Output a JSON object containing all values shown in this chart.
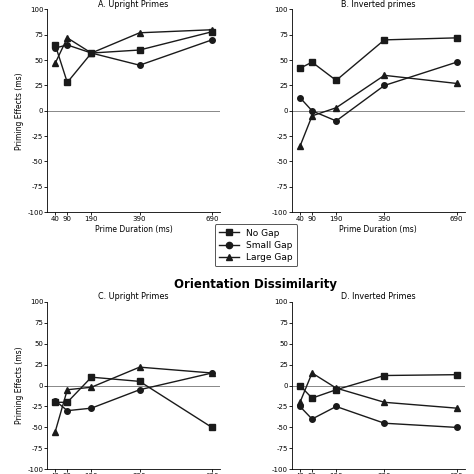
{
  "x_vals": [
    40,
    90,
    190,
    390,
    690
  ],
  "x_ticks": [
    40,
    90,
    190,
    390,
    690
  ],
  "panel_A": {
    "title": "A. Upright Primes",
    "no_gap": [
      65,
      28,
      57,
      60,
      78
    ],
    "small_gap": [
      62,
      65,
      57,
      45,
      70
    ],
    "large_gap": [
      47,
      72,
      57,
      77,
      80
    ]
  },
  "panel_B": {
    "title": "B. Inverted primes",
    "no_gap": [
      42,
      48,
      30,
      70,
      72
    ],
    "small_gap": [
      13,
      0,
      -10,
      25,
      48
    ],
    "large_gap": [
      -35,
      -5,
      3,
      35,
      27
    ]
  },
  "panel_C": {
    "title": "C. Upright Primes",
    "no_gap": [
      -20,
      -20,
      10,
      5,
      -50
    ],
    "small_gap": [
      -18,
      -30,
      -27,
      -5,
      15
    ],
    "large_gap": [
      -55,
      -5,
      -2,
      22,
      15
    ]
  },
  "panel_D": {
    "title": "D. Inverted Primes",
    "no_gap": [
      0,
      -15,
      -5,
      12,
      13
    ],
    "small_gap": [
      -25,
      -40,
      -25,
      -45,
      -50
    ],
    "large_gap": [
      -20,
      15,
      -3,
      -20,
      -27
    ]
  },
  "ylabel": "Priming Effects (ms)",
  "xlabel": "Prime Duration (ms)",
  "ylim": [
    -100,
    100
  ],
  "yticks": [
    -100,
    -75,
    -50,
    -25,
    0,
    25,
    50,
    75,
    100
  ],
  "line_color": "#1a1a1a",
  "linewidth": 1.0,
  "markersize": 4,
  "legend_labels": [
    "No Gap",
    "Small Gap",
    "Large Gap"
  ],
  "center_title": "Orientation Dissimilarity"
}
